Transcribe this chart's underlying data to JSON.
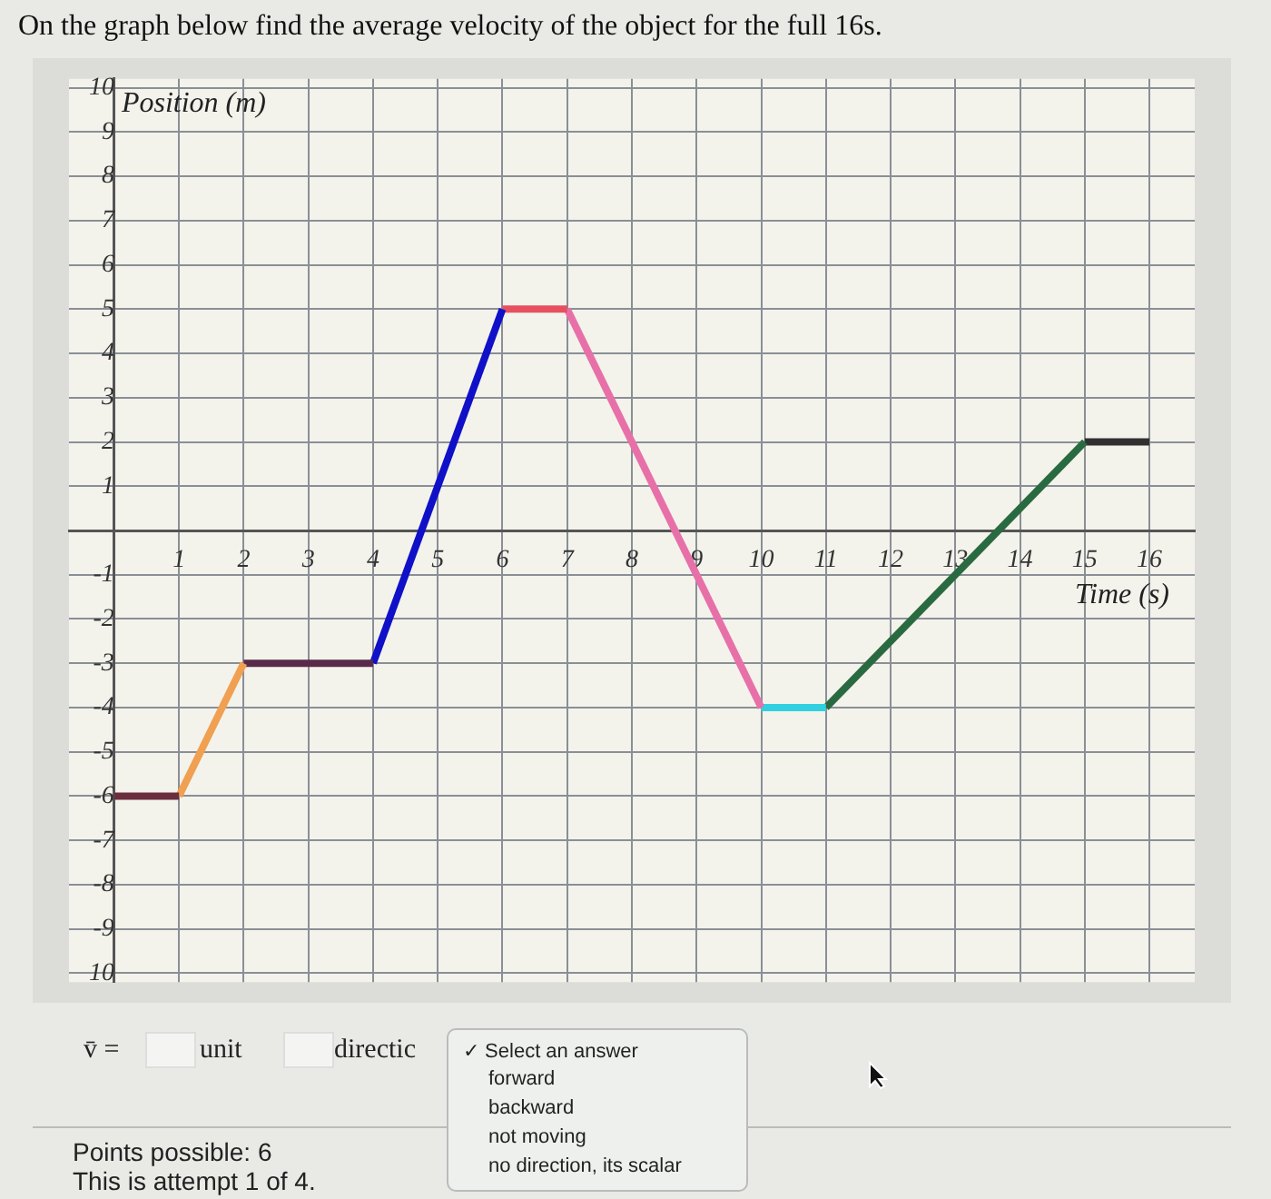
{
  "chart_data": {
    "type": "line",
    "title": "On the graph below find the average velocity of the object for the full 16s.",
    "xlabel": "Time (s)",
    "ylabel": "Position (m)",
    "xlim": [
      -0.7,
      16.7
    ],
    "ylim": [
      -10.2,
      10.2
    ],
    "xticks": [
      1,
      2,
      3,
      4,
      5,
      6,
      7,
      8,
      9,
      10,
      11,
      12,
      13,
      14,
      15,
      16
    ],
    "yticks": [
      {
        "value": -10,
        "label": "10"
      },
      -9,
      -8,
      -7,
      -6,
      -5,
      -4,
      -3,
      -2,
      -1,
      1,
      2,
      3,
      4,
      5,
      6,
      7,
      8,
      9,
      10
    ],
    "grid": true,
    "legend": false,
    "marker": "none",
    "line_style": "solid",
    "series": [
      {
        "color": "#6b2e3e",
        "x": [
          0,
          1
        ],
        "values": [
          -6,
          -6
        ]
      },
      {
        "color": "#f0a050",
        "x": [
          1,
          2
        ],
        "values": [
          -6,
          -3
        ]
      },
      {
        "color": "#5a2a4a",
        "x": [
          2,
          4
        ],
        "values": [
          -3,
          -3
        ]
      },
      {
        "color": "#1010c8",
        "x": [
          4,
          6
        ],
        "values": [
          -3,
          5
        ]
      },
      {
        "color": "#e85060",
        "x": [
          6,
          7
        ],
        "values": [
          5,
          5
        ]
      },
      {
        "color": "#e870a8",
        "x": [
          7,
          10
        ],
        "values": [
          5,
          -4
        ]
      },
      {
        "color": "#30d0e0",
        "x": [
          10,
          11
        ],
        "values": [
          -4,
          -4
        ]
      },
      {
        "color": "#2a6a40",
        "x": [
          11,
          15
        ],
        "values": [
          -4,
          2
        ]
      },
      {
        "color": "#303030",
        "x": [
          15,
          16
        ],
        "values": [
          2,
          2
        ]
      }
    ],
    "annotations": [
      "v̄ =",
      "unit",
      "directic",
      "✓ Select an answer",
      "forward",
      "backward",
      "not moving",
      "no direction, its scalar",
      "Points possible: 6",
      "This is attempt 1 of 4."
    ]
  }
}
